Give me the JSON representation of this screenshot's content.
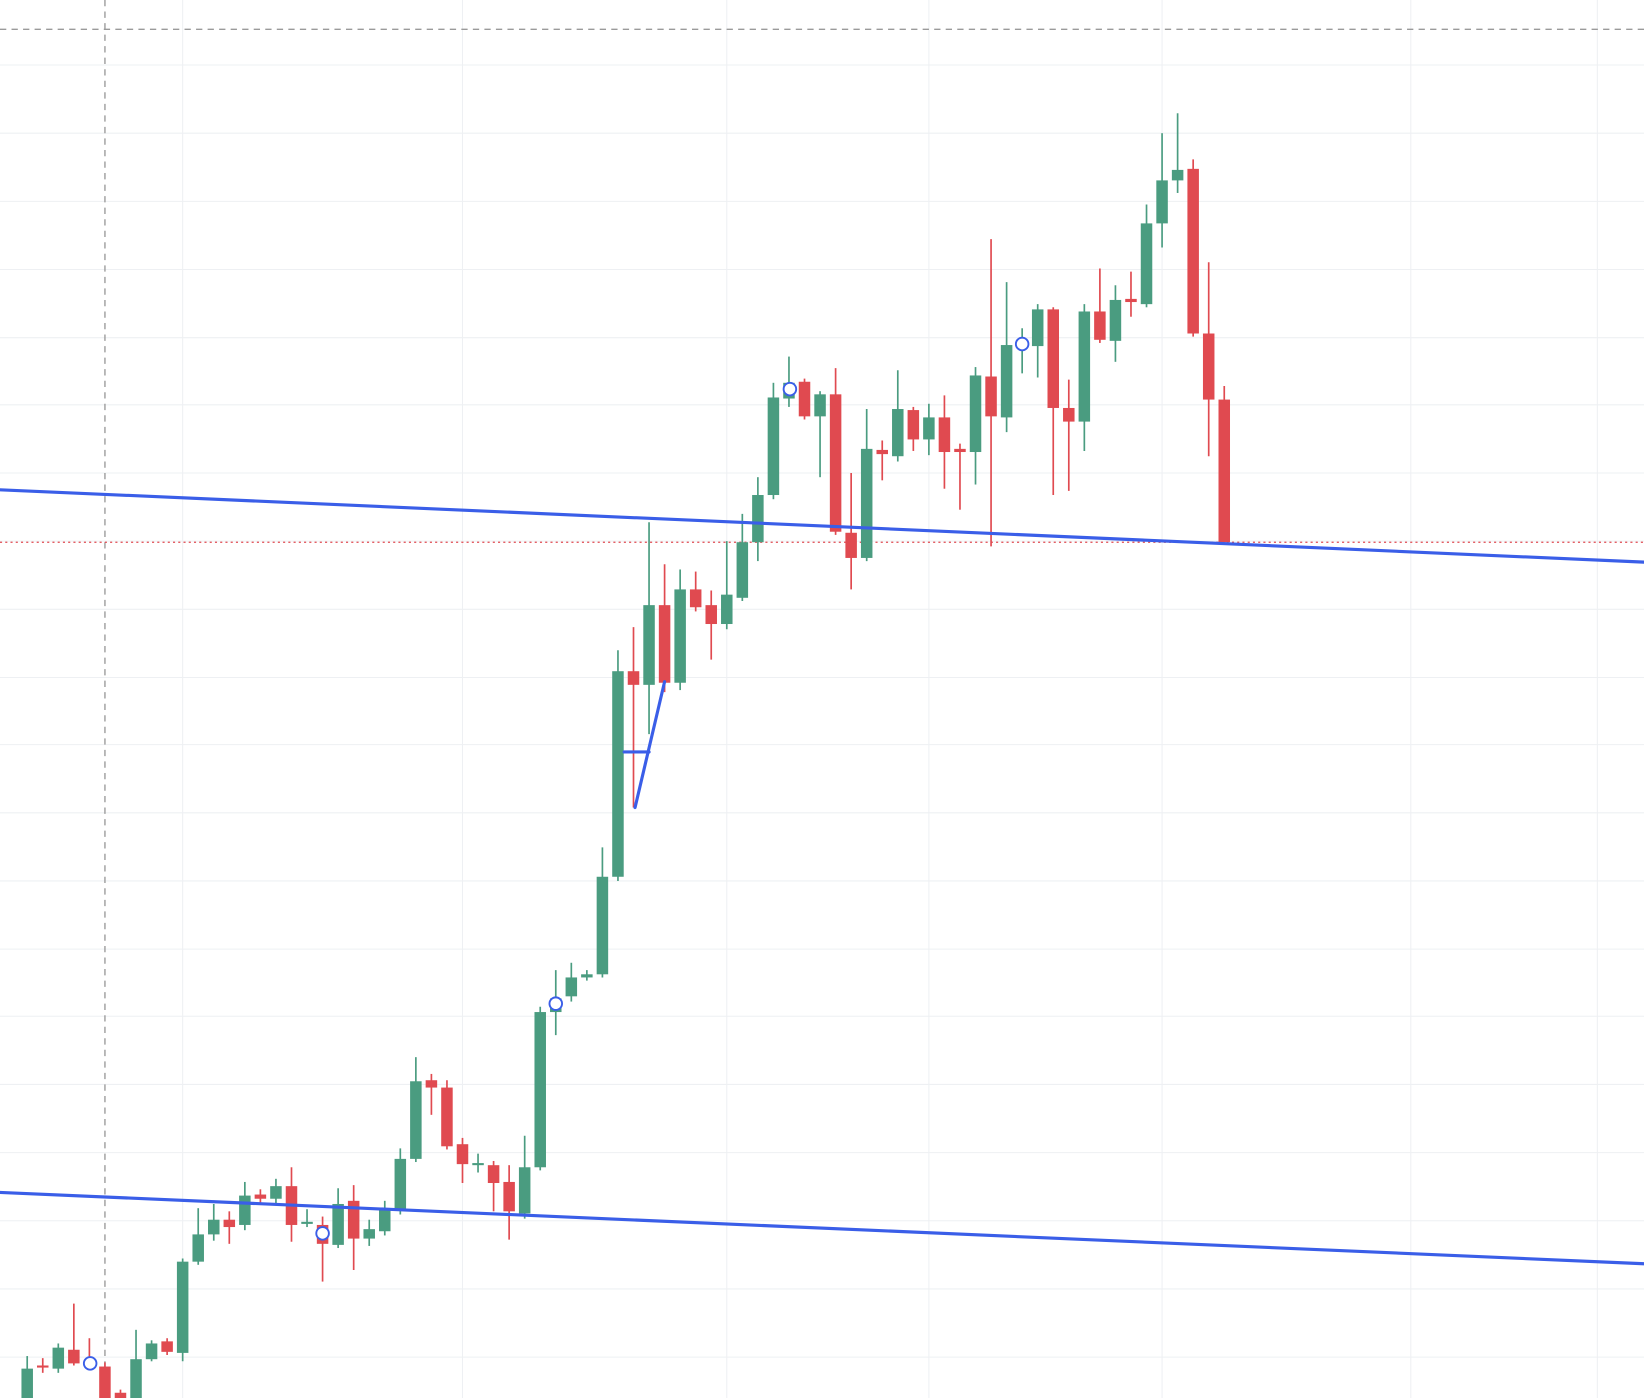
{
  "chart_data": {
    "type": "candlestick",
    "up_color": "#4a9c80",
    "down_color": "#e04a50",
    "xlim": [
      -1.75,
      104
    ],
    "ylim": [
      0,
      1333
    ],
    "xticks": [
      10,
      28,
      45,
      58,
      73,
      89,
      101
    ],
    "yticks": [
      39,
      104,
      169,
      234,
      299,
      364,
      428,
      493,
      558,
      623,
      687,
      752,
      817,
      882,
      947,
      1011,
      1076,
      1141,
      1206,
      1271
    ],
    "grid": true,
    "open": [
      0,
      31,
      28,
      46,
      34,
      30,
      5,
      0,
      37,
      54,
      43,
      130,
      156,
      170,
      165,
      194,
      190,
      202,
      166,
      165,
      146,
      188,
      152,
      159,
      180,
      228,
      303,
      296,
      242,
      222,
      222,
      206,
      176,
      220,
      368,
      383,
      401,
      404,
      497,
      693,
      680,
      756,
      682,
      771,
      756,
      738,
      763,
      816,
      861,
      953,
      969,
      936,
      957,
      825,
      801,
      904,
      898,
      942,
      914,
      935,
      905,
      902,
      974,
      935,
      1003,
      1003,
      1038,
      944,
      931,
      1036,
      1008,
      1048,
      1043,
      1120,
      1161,
      1172,
      1015,
      952
    ],
    "high": [
      40,
      38,
      52,
      90,
      57,
      34,
      8,
      65,
      55,
      57,
      133,
      181,
      185,
      178,
      206,
      199,
      209,
      220,
      180,
      173,
      200,
      203,
      170,
      188,
      238,
      325,
      309,
      303,
      248,
      233,
      226,
      222,
      250,
      373,
      408,
      415,
      408,
      525,
      713,
      735,
      835,
      795,
      790,
      788,
      770,
      817,
      843,
      878,
      968,
      993,
      972,
      960,
      982,
      882,
      943,
      913,
      980,
      945,
      948,
      956,
      910,
      983,
      1105,
      1064,
      1020,
      1043,
      1040,
      971,
      1043,
      1077,
      1061,
      1074,
      1138,
      1206,
      1225,
      1181,
      1083,
      965
    ],
    "low": [
      0,
      24,
      24,
      31,
      28,
      0,
      0,
      0,
      35,
      41,
      35,
      127,
      150,
      147,
      160,
      185,
      185,
      149,
      163,
      111,
      143,
      122,
      145,
      155,
      175,
      225,
      270,
      237,
      205,
      215,
      178,
      151,
      171,
      217,
      346,
      378,
      398,
      401,
      493,
      563,
      633,
      673,
      675,
      750,
      704,
      733,
      760,
      798,
      857,
      945,
      933,
      878,
      823,
      771,
      798,
      875,
      893,
      903,
      899,
      867,
      847,
      871,
      812,
      921,
      977,
      973,
      861,
      865,
      903,
      1006,
      988,
      1031,
      1040,
      1097,
      1149,
      1012,
      898,
      816
    ],
    "close": [
      28,
      29,
      48,
      33,
      32,
      0,
      0,
      37,
      52,
      44,
      130,
      156,
      170,
      163,
      193,
      190,
      202,
      165,
      168,
      147,
      185,
      152,
      161,
      181,
      228,
      302,
      296,
      240,
      223,
      224,
      205,
      178,
      220,
      368,
      381,
      401,
      404,
      497,
      693,
      680,
      756,
      682,
      771,
      754,
      738,
      766,
      816,
      861,
      954,
      968,
      936,
      957,
      826,
      801,
      905,
      900,
      943,
      914,
      935,
      902,
      902,
      975,
      936,
      1004,
      1007,
      1038,
      944,
      931,
      1036,
      1009,
      1047,
      1045,
      1120,
      1161,
      1171,
      1015,
      952,
      816
    ],
    "trendlines": [
      {
        "color": "#3a5ee8",
        "x": [
          -1.75,
          104
        ],
        "y": [
          866,
          797
        ]
      },
      {
        "color": "#3a5ee8",
        "x": [
          -1.75,
          104
        ],
        "y": [
          196,
          128
        ]
      },
      {
        "color": "#3a5ee8",
        "x": [
          38.4,
          40.0
        ],
        "y": [
          616,
          616
        ]
      },
      {
        "color": "#3a5ee8",
        "x": [
          39.1,
          41.0
        ],
        "y": [
          563,
          683
        ]
      }
    ],
    "markers": {
      "color": "#3a5ee8",
      "x": [
        4.05,
        19.0,
        34.0,
        49.06,
        64.0
      ],
      "y": [
        33,
        157,
        376,
        962,
        1005
      ]
    },
    "crosshair": {
      "x": 5,
      "y": 1305,
      "color": "#9a9a9a"
    },
    "price_line": {
      "value": 816,
      "color": "#e04a50"
    }
  }
}
